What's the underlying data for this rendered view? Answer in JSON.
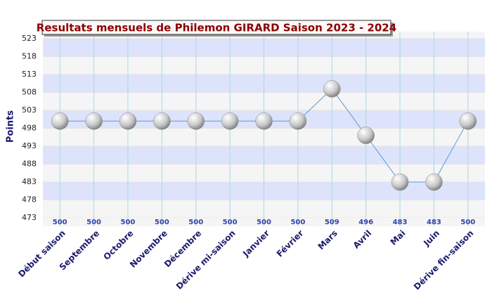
{
  "chart_data": {
    "type": "line",
    "title": "Resultats mensuels de Philemon GIRARD Saison 2023 - 2024",
    "y_label": "Points",
    "categories": [
      "Début saison",
      "Septembre",
      "Octobre",
      "Novembre",
      "Décembre",
      "Dérive mi-saison",
      "Janvier",
      "Février",
      "Mars",
      "Avril",
      "Mai",
      "Juin",
      "Dérive fin-saison"
    ],
    "series": [
      {
        "name": "Points",
        "color": "#5b9bd5",
        "values": [
          500,
          500,
          500,
          500,
          500,
          500,
          500,
          500,
          509,
          496,
          483,
          483,
          500
        ]
      }
    ],
    "ylim": [
      473,
      523
    ],
    "yticks": [
      473,
      478,
      483,
      488,
      493,
      498,
      503,
      508,
      513,
      518,
      523
    ],
    "grid": true
  }
}
